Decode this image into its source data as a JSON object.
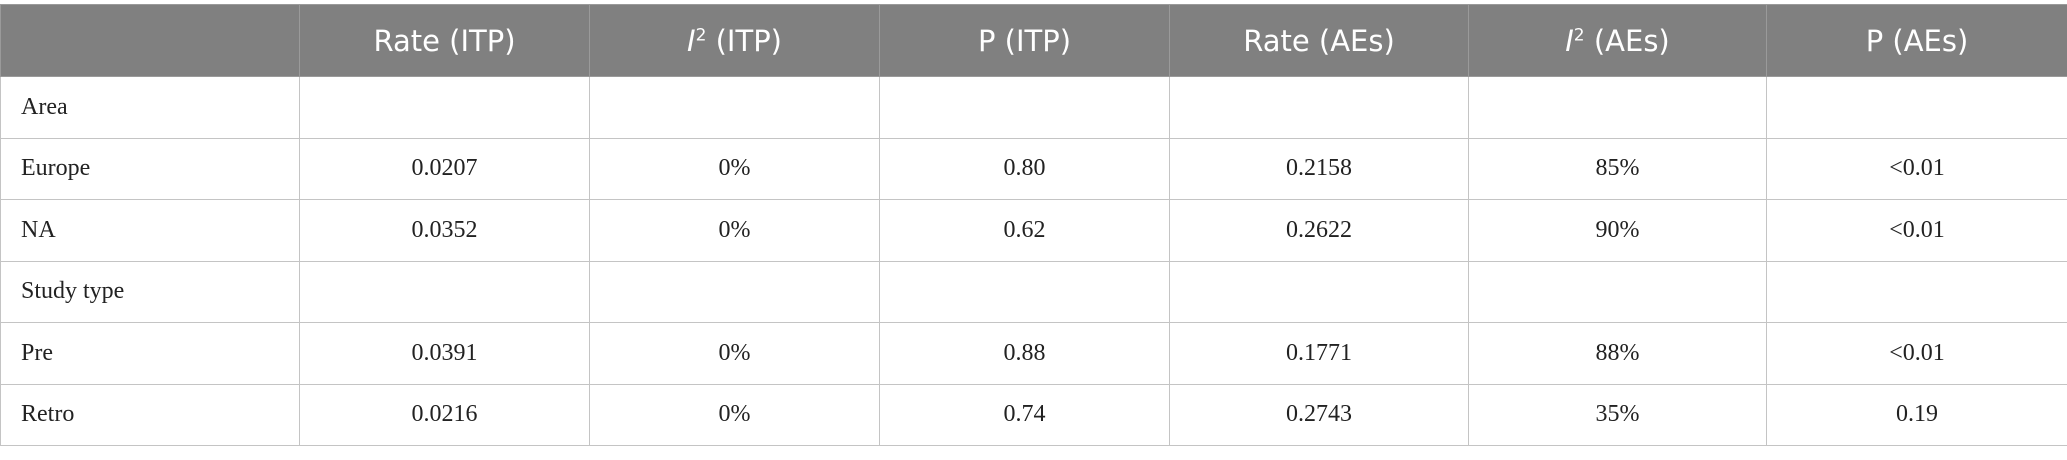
{
  "table": {
    "header": [
      {
        "text": "Rate (ITP)"
      },
      {
        "italic": "I",
        "sup": "2",
        "text": " (ITP)"
      },
      {
        "text": "P (ITP)"
      },
      {
        "text": "Rate (AEs)"
      },
      {
        "italic": "I",
        "sup": "2",
        "text": " (AEs)"
      },
      {
        "text": "P (AEs)"
      }
    ],
    "rows": [
      {
        "label": "Area"
      },
      {
        "label": "Europe",
        "cells": [
          "0.0207",
          "0%",
          "0.80",
          "0.2158",
          "85%",
          "<0.01"
        ]
      },
      {
        "label": "NA",
        "cells": [
          "0.0352",
          "0%",
          "0.62",
          "0.2622",
          "90%",
          "<0.01"
        ]
      },
      {
        "label": "Study type"
      },
      {
        "label": "Pre",
        "cells": [
          "0.0391",
          "0%",
          "0.88",
          "0.1771",
          "88%",
          "<0.01"
        ]
      },
      {
        "label": "Retro",
        "cells": [
          "0.0216",
          "0%",
          "0.74",
          "0.2743",
          "35%",
          "0.19"
        ]
      }
    ]
  }
}
